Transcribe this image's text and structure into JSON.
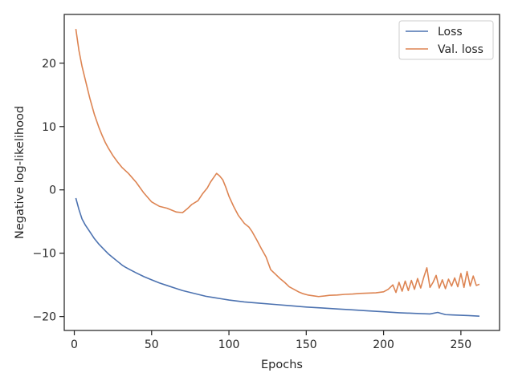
{
  "chart_data": {
    "type": "line",
    "title": "",
    "xlabel": "Epochs",
    "ylabel": "Negative log-likelihood",
    "xlim": [
      -6.5,
      275
    ],
    "ylim": [
      -22.2,
      27.7
    ],
    "xticks": [
      0,
      50,
      100,
      150,
      200,
      250
    ],
    "yticks": [
      -20,
      -10,
      0,
      10,
      20
    ],
    "xtick_labels": [
      "0",
      "50",
      "100",
      "150",
      "200",
      "250"
    ],
    "ytick_labels": [
      "−20",
      "−10",
      "0",
      "10",
      "20"
    ],
    "grid": false,
    "legend": "top-right",
    "series": [
      {
        "name": "Loss",
        "color": "#4c72b0",
        "x": [
          1,
          3,
          5,
          7,
          10,
          13,
          16,
          18,
          20,
          22,
          25,
          28,
          31,
          33,
          36,
          40,
          45,
          50,
          55,
          60,
          65,
          70,
          75,
          80,
          85,
          90,
          95,
          100,
          110,
          120,
          130,
          140,
          150,
          160,
          170,
          180,
          190,
          200,
          210,
          220,
          230,
          235,
          240,
          245,
          250,
          255,
          262
        ],
        "y": [
          -1.3,
          -3.1,
          -4.6,
          -5.5,
          -6.6,
          -7.7,
          -8.6,
          -9.1,
          -9.6,
          -10.1,
          -10.7,
          -11.3,
          -11.9,
          -12.2,
          -12.6,
          -13.1,
          -13.7,
          -14.2,
          -14.7,
          -15.1,
          -15.5,
          -15.9,
          -16.2,
          -16.5,
          -16.8,
          -17.0,
          -17.2,
          -17.4,
          -17.7,
          -17.9,
          -18.1,
          -18.3,
          -18.5,
          -18.65,
          -18.8,
          -18.95,
          -19.1,
          -19.25,
          -19.4,
          -19.5,
          -19.6,
          -19.35,
          -19.7,
          -19.75,
          -19.8,
          -19.85,
          -19.95
        ]
      },
      {
        "name": "Val. loss",
        "color": "#dd8452",
        "x": [
          1,
          3,
          5,
          7,
          10,
          13,
          16,
          18,
          20,
          22,
          25,
          28,
          31,
          35,
          40,
          45,
          50,
          55,
          60,
          63,
          66,
          70,
          73,
          76,
          80,
          83,
          86,
          88,
          90,
          92,
          94,
          96,
          98,
          100,
          103,
          106,
          110,
          113,
          115,
          118,
          121,
          124,
          127,
          130,
          133,
          136,
          139,
          142,
          145,
          148,
          151,
          155,
          158,
          162,
          165,
          170,
          175,
          180,
          185,
          190,
          195,
          200,
          203,
          206,
          208,
          210,
          212,
          214,
          216,
          218,
          220,
          222,
          224,
          226,
          228,
          230,
          232,
          234,
          236,
          238,
          240,
          242,
          244,
          246,
          248,
          250,
          252,
          254,
          256,
          258,
          260,
          262
        ],
        "y": [
          25.4,
          22.0,
          19.5,
          17.5,
          14.5,
          11.9,
          9.8,
          8.6,
          7.5,
          6.6,
          5.4,
          4.4,
          3.5,
          2.6,
          1.2,
          -0.5,
          -1.9,
          -2.6,
          -2.9,
          -3.2,
          -3.5,
          -3.6,
          -3.0,
          -2.3,
          -1.7,
          -0.6,
          0.3,
          1.2,
          1.9,
          2.6,
          2.2,
          1.6,
          0.4,
          -1.0,
          -2.6,
          -4.0,
          -5.3,
          -5.9,
          -6.6,
          -7.9,
          -9.3,
          -10.6,
          -12.6,
          -13.3,
          -14.0,
          -14.6,
          -15.3,
          -15.7,
          -16.1,
          -16.4,
          -16.6,
          -16.75,
          -16.85,
          -16.75,
          -16.65,
          -16.6,
          -16.5,
          -16.45,
          -16.35,
          -16.3,
          -16.25,
          -16.1,
          -15.7,
          -15.0,
          -16.2,
          -14.6,
          -16.0,
          -14.4,
          -15.9,
          -14.3,
          -15.7,
          -14.0,
          -15.5,
          -13.8,
          -12.3,
          -15.4,
          -14.6,
          -13.5,
          -15.5,
          -14.2,
          -15.6,
          -14.1,
          -15.2,
          -13.9,
          -15.3,
          -13.2,
          -15.4,
          -12.9,
          -15.2,
          -13.6,
          -15.1,
          -14.9
        ]
      }
    ]
  }
}
